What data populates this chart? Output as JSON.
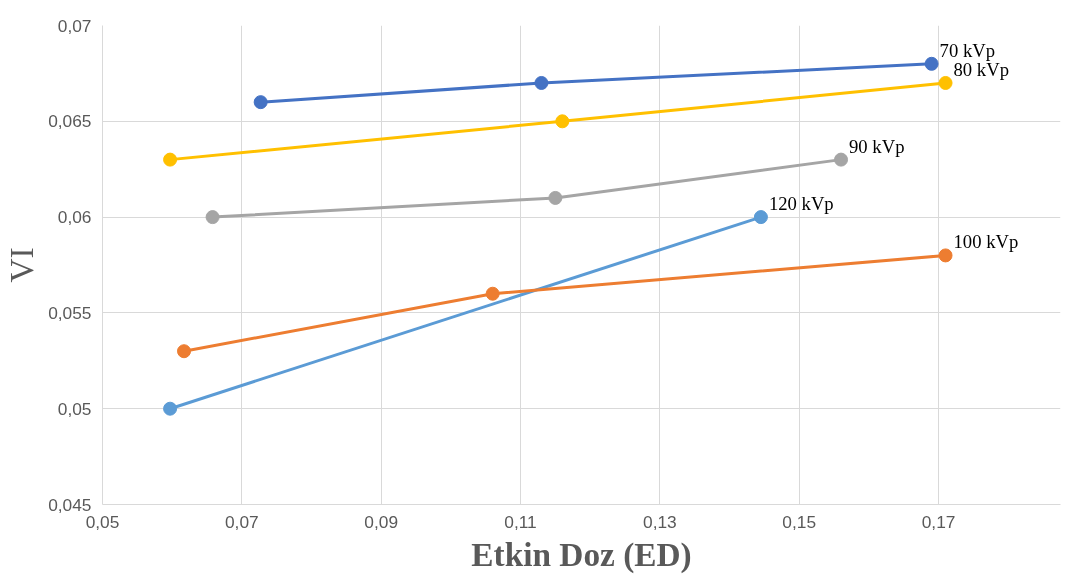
{
  "chart_data": {
    "type": "line",
    "xlabel": "Etkin Doz (ED)",
    "ylabel": "VI",
    "xlim": [
      0.05,
      0.1875
    ],
    "ylim": [
      0.045,
      0.07
    ],
    "xticks": [
      {
        "value": 0.05,
        "label": "0,05"
      },
      {
        "value": 0.07,
        "label": "0,07"
      },
      {
        "value": 0.09,
        "label": "0,09"
      },
      {
        "value": 0.11,
        "label": "0,11"
      },
      {
        "value": 0.13,
        "label": "0,13"
      },
      {
        "value": 0.15,
        "label": "0,15"
      },
      {
        "value": 0.17,
        "label": "0,17"
      }
    ],
    "yticks": [
      {
        "value": 0.045,
        "label": "0,045"
      },
      {
        "value": 0.05,
        "label": "0,05"
      },
      {
        "value": 0.055,
        "label": "0,055"
      },
      {
        "value": 0.06,
        "label": "0,06"
      },
      {
        "value": 0.065,
        "label": "0,065"
      },
      {
        "value": 0.07,
        "label": "0,07"
      }
    ],
    "grid": true,
    "marker": "circle",
    "line_style": "solid",
    "series": [
      {
        "name": "70 kVp",
        "color": "#4472c4",
        "x": [
          0.0727,
          0.113,
          0.169
        ],
        "values": [
          0.066,
          0.067,
          0.068
        ]
      },
      {
        "name": "80 kVp",
        "color": "#ffc000",
        "x": [
          0.0597,
          0.116,
          0.171
        ],
        "values": [
          0.063,
          0.065,
          0.067
        ]
      },
      {
        "name": "90 kVp",
        "color": "#a5a5a5",
        "x": [
          0.0658,
          0.115,
          0.156
        ],
        "values": [
          0.06,
          0.061,
          0.063
        ]
      },
      {
        "name": "120 kVp",
        "color": "#5b9bd5",
        "x": [
          0.0597,
          0.1445
        ],
        "values": [
          0.05,
          0.06
        ]
      },
      {
        "name": "100 kVp",
        "color": "#ed7d31",
        "x": [
          0.0617,
          0.106,
          0.171
        ],
        "values": [
          0.053,
          0.056,
          0.058
        ]
      }
    ]
  }
}
